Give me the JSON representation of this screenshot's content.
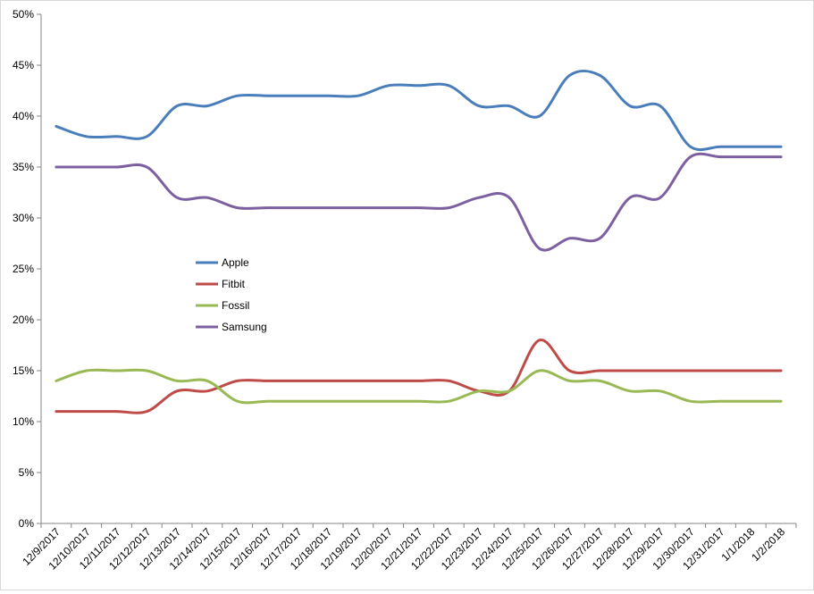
{
  "chart_data": {
    "type": "line",
    "categories": [
      "12/9/2017",
      "12/10/2017",
      "12/11/2017",
      "12/12/2017",
      "12/13/2017",
      "12/14/2017",
      "12/15/2017",
      "12/16/2017",
      "12/17/2017",
      "12/18/2017",
      "12/19/2017",
      "12/20/2017",
      "12/21/2017",
      "12/22/2017",
      "12/23/2017",
      "12/24/2017",
      "12/25/2017",
      "12/26/2017",
      "12/27/2017",
      "12/28/2017",
      "12/29/2017",
      "12/30/2017",
      "12/31/2017",
      "1/1/2018",
      "1/2/2018"
    ],
    "series": [
      {
        "name": "Apple",
        "color": "#4a7ebb",
        "values": [
          39,
          38,
          38,
          38,
          41,
          41,
          42,
          42,
          42,
          42,
          42,
          43,
          43,
          43,
          41,
          41,
          40,
          44,
          44,
          41,
          41,
          37,
          37,
          37,
          37
        ]
      },
      {
        "name": "Fitbit",
        "color": "#be4b48",
        "values": [
          11,
          11,
          11,
          11,
          13,
          13,
          14,
          14,
          14,
          14,
          14,
          14,
          14,
          14,
          13,
          13,
          18,
          15,
          15,
          15,
          15,
          15,
          15,
          15,
          15
        ]
      },
      {
        "name": "Fossil",
        "color": "#98b954",
        "values": [
          14,
          15,
          15,
          15,
          14,
          14,
          12,
          12,
          12,
          12,
          12,
          12,
          12,
          12,
          13,
          13,
          15,
          14,
          14,
          13,
          13,
          12,
          12,
          12,
          12
        ]
      },
      {
        "name": "Samsung",
        "color": "#7d60a0",
        "values": [
          35,
          35,
          35,
          35,
          32,
          32,
          31,
          31,
          31,
          31,
          31,
          31,
          31,
          31,
          32,
          32,
          27,
          28,
          28,
          32,
          32,
          36,
          36,
          36,
          36
        ]
      }
    ],
    "y_ticks": [
      "0%",
      "5%",
      "10%",
      "15%",
      "20%",
      "25%",
      "30%",
      "35%",
      "40%",
      "45%",
      "50%"
    ],
    "ylim": [
      0,
      50
    ],
    "y_unit": "%",
    "grid": false,
    "legend_placement": "inside-left"
  }
}
